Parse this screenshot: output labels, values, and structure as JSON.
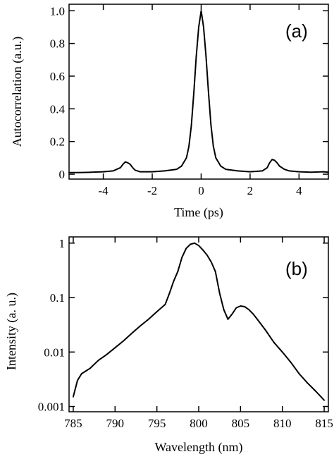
{
  "chart_data": [
    {
      "type": "line",
      "panel_label": "(a)",
      "xlabel": "Time (ps)",
      "ylabel": "Autocorrelation (a.u.)",
      "xlim": [
        -5.4,
        5.2
      ],
      "ylim": [
        -0.03,
        1.04
      ],
      "x_ticks": [
        -4,
        -2,
        0,
        2,
        4
      ],
      "x_tick_labels": [
        "-4",
        "-2",
        "0",
        "2",
        "4"
      ],
      "y_ticks": [
        0,
        0.2,
        0.4,
        0.6,
        0.8,
        1.0
      ],
      "y_tick_labels": [
        "0",
        "0.2",
        "0.4",
        "0.6",
        "0.8",
        "1.0"
      ],
      "grid": false,
      "series": [
        {
          "x": [
            -5.4,
            -5.0,
            -4.5,
            -4.0,
            -3.6,
            -3.3,
            -3.2,
            -3.1,
            -3.0,
            -2.9,
            -2.8,
            -2.7,
            -2.5,
            -2.0,
            -1.5,
            -1.0,
            -0.8,
            -0.6,
            -0.5,
            -0.4,
            -0.3,
            -0.2,
            -0.1,
            0.0,
            0.1,
            0.2,
            0.3,
            0.4,
            0.5,
            0.6,
            0.8,
            1.0,
            1.5,
            2.0,
            2.5,
            2.7,
            2.8,
            2.9,
            3.0,
            3.1,
            3.2,
            3.4,
            3.6,
            4.0,
            4.5,
            5.0,
            5.2
          ],
          "values": [
            0.01,
            0.01,
            0.012,
            0.015,
            0.02,
            0.04,
            0.06,
            0.075,
            0.07,
            0.06,
            0.04,
            0.025,
            0.015,
            0.015,
            0.02,
            0.03,
            0.05,
            0.1,
            0.17,
            0.3,
            0.5,
            0.72,
            0.9,
            1.0,
            0.9,
            0.72,
            0.5,
            0.3,
            0.17,
            0.1,
            0.05,
            0.03,
            0.02,
            0.015,
            0.02,
            0.04,
            0.07,
            0.09,
            0.085,
            0.07,
            0.05,
            0.03,
            0.02,
            0.015,
            0.012,
            0.015,
            0.012
          ]
        }
      ]
    },
    {
      "type": "line",
      "panel_label": "(b)",
      "xlabel": "Wavelength (nm)",
      "ylabel": "Intensity (a. u.)",
      "xlim": [
        784.5,
        815.5
      ],
      "ylim": [
        0.0008,
        1.3
      ],
      "yscale": "log",
      "x_ticks": [
        785,
        790,
        795,
        800,
        805,
        810,
        815
      ],
      "x_tick_labels": [
        "785",
        "790",
        "795",
        "800",
        "805",
        "810",
        "815"
      ],
      "y_ticks": [
        0.001,
        0.01,
        0.1,
        1
      ],
      "y_tick_labels": [
        "0.001",
        "0.01",
        "0.1",
        "1"
      ],
      "grid": false,
      "series": [
        {
          "x": [
            785,
            785.5,
            786,
            787,
            788,
            789,
            790,
            791,
            792,
            793,
            794,
            795,
            796,
            796.5,
            797,
            797.5,
            798,
            798.5,
            799,
            799.5,
            800,
            800.5,
            801,
            801.5,
            802,
            802.5,
            803,
            803.5,
            804,
            804.5,
            805,
            805.5,
            806,
            806.5,
            807,
            808,
            809,
            810,
            811,
            812,
            813,
            814,
            815
          ],
          "values": [
            0.0015,
            0.003,
            0.004,
            0.005,
            0.007,
            0.009,
            0.012,
            0.016,
            0.022,
            0.03,
            0.04,
            0.055,
            0.075,
            0.12,
            0.2,
            0.3,
            0.55,
            0.8,
            0.95,
            1.0,
            0.9,
            0.75,
            0.6,
            0.45,
            0.3,
            0.12,
            0.06,
            0.04,
            0.05,
            0.065,
            0.07,
            0.068,
            0.06,
            0.05,
            0.04,
            0.025,
            0.015,
            0.01,
            0.0065,
            0.004,
            0.0027,
            0.0019,
            0.0013
          ]
        }
      ]
    }
  ]
}
